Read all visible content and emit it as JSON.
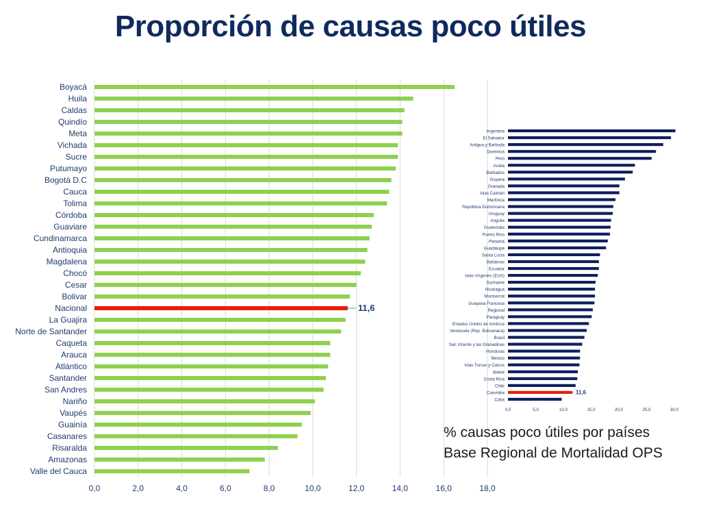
{
  "slide": {
    "title": "Proporción de causas poco útiles",
    "caption_line1": "% causas poco útiles por países",
    "caption_line2": "Base Regional de Mortalidad OPS"
  },
  "colors": {
    "title": "#0f2a5e",
    "left_bars": "#8fd14f",
    "right_bars": "#0f1f5c",
    "highlight": "#e8200a",
    "axis_text": "#1f3a6e",
    "grid": "#d9d9d9"
  },
  "chart_data": [
    {
      "type": "bar",
      "orientation": "horizontal",
      "categories": [
        "Boyacá",
        "Huila",
        "Caldas",
        "Quindío",
        "Meta",
        "Vichada",
        "Sucre",
        "Putumayo",
        "Bogotá D.C",
        "Cauca",
        "Tolima",
        "Córdoba",
        "Guaviare",
        "Cundinamarca",
        "Antioquia",
        "Magdalena",
        "Chocó",
        "Cesar",
        "Bolivar",
        "Nacional",
        "La Guajira",
        "Norte de Santander",
        "Caqueta",
        "Arauca",
        "Atlántico",
        "Santander",
        "San Andres",
        "Nariño",
        "Vaupés",
        "Guainía",
        "Casanares",
        "Risaralda",
        "Amazonas",
        "Valle del Cauca"
      ],
      "values": [
        16.5,
        14.6,
        14.2,
        14.1,
        14.1,
        13.9,
        13.9,
        13.8,
        13.6,
        13.5,
        13.4,
        12.8,
        12.7,
        12.6,
        12.5,
        12.4,
        12.2,
        12.0,
        11.7,
        11.6,
        11.5,
        11.3,
        10.8,
        10.8,
        10.7,
        10.6,
        10.5,
        10.1,
        9.9,
        9.5,
        9.3,
        8.4,
        7.8,
        7.1
      ],
      "highlight_category": "Nacional",
      "highlight_label": "11,6",
      "xlim": [
        0,
        18
      ],
      "xticks": [
        "0,0",
        "2,0",
        "4,0",
        "6,0",
        "8,0",
        "10,0",
        "12,0",
        "14,0",
        "16,0",
        "18,0"
      ],
      "grid": true
    },
    {
      "type": "bar",
      "orientation": "horizontal",
      "categories": [
        "Argentina",
        "El Salvador",
        "Antigua y Barbuda",
        "Dominica",
        "Perú",
        "Aruba",
        "Barbados",
        "Guyana",
        "Granada",
        "Islas Caimán",
        "Martinica",
        "República Dominicana",
        "Uruguay",
        "Anguila",
        "Guatemala",
        "Puerto Rico",
        "Panamá",
        "Guadalupe",
        "Santa Lucía",
        "Bahamas",
        "Ecuador",
        "Islas Vírgenes (EUA)",
        "Suriname",
        "Nicaragua",
        "Montserrat",
        "Guayana Francesa",
        "Regional",
        "Paraguay",
        "Estados Unidos de América",
        "Venezuela (Rep. Bolivariana)",
        "Brasil",
        "San Vicente y las Granadinas",
        "Honduras",
        "México",
        "Islas Turcas y Caicos",
        "Belice",
        "Costa Rica",
        "Chile",
        "Colombia",
        "Cuba"
      ],
      "values": [
        30.2,
        29.4,
        28.0,
        26.7,
        25.9,
        22.9,
        22.5,
        21.1,
        20.1,
        20.1,
        19.4,
        19.0,
        18.9,
        18.6,
        18.5,
        18.4,
        18.0,
        17.7,
        16.6,
        16.4,
        16.4,
        16.2,
        15.8,
        15.7,
        15.7,
        15.6,
        15.3,
        15.1,
        14.6,
        14.2,
        13.8,
        13.4,
        13.0,
        13.0,
        12.9,
        12.6,
        12.5,
        12.2,
        11.6,
        9.7
      ],
      "highlight_category": "Colombia",
      "highlight_label": "11,6",
      "xlim": [
        0,
        30
      ],
      "xticks": [
        "0,0",
        "5,0",
        "10,0",
        "15,0",
        "20,0",
        "25,0",
        "30,0"
      ],
      "grid": false
    }
  ]
}
